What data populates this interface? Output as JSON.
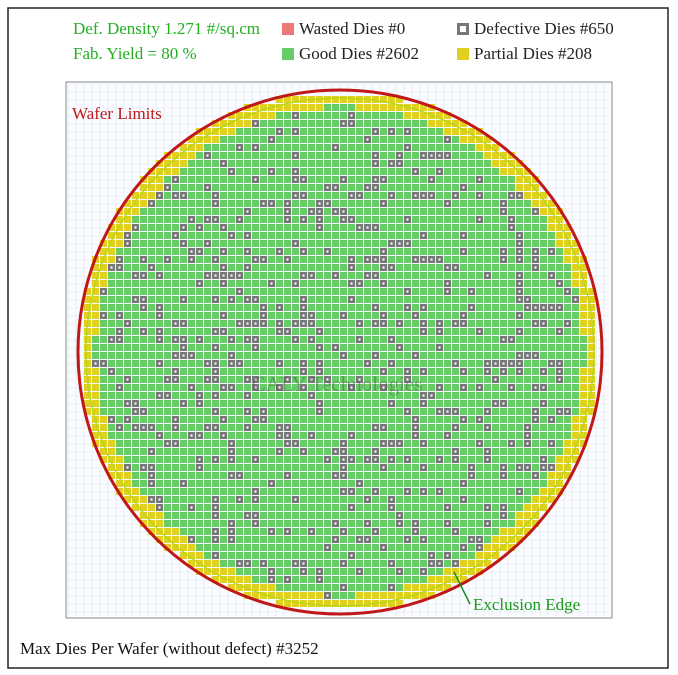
{
  "header": {
    "density": "Def. Density 1.271 #/sq.cm",
    "yield": "Fab. Yield = 80 %"
  },
  "legend": {
    "wasted": "Wasted Dies #0",
    "defective": "Defective Dies #650",
    "good": "Good Dies #2602",
    "partial": "Partial Dies #208"
  },
  "labels": {
    "wafer_limits": "Wafer Limits",
    "exclusion_edge": "Exclusion Edge",
    "watermark": "CALY Technologies"
  },
  "footer": "Max Dies Per Wafer (without defect) #3252"
}
